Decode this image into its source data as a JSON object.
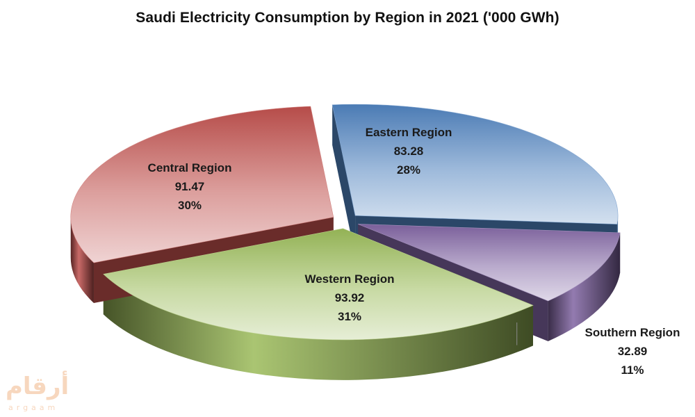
{
  "chart_data": {
    "type": "pie",
    "title": "Saudi Electricity Consumption by Region in 2021 ('000 GWh)",
    "legend": "none",
    "labels_on_slices": true,
    "slices": [
      {
        "name": "Eastern Region",
        "value": 83.28,
        "value_label": "83.28",
        "percent_label": "28%",
        "color": "#4f81bd"
      },
      {
        "name": "Southern Region",
        "value": 32.89,
        "value_label": "32.89",
        "percent_label": "11%",
        "color": "#8064a2"
      },
      {
        "name": "Western Region",
        "value": 93.92,
        "value_label": "93.92",
        "percent_label": "31%",
        "color": "#9bbb59"
      },
      {
        "name": "Central Region",
        "value": 91.47,
        "value_label": "91.47",
        "percent_label": "30%",
        "color": "#c0504d"
      }
    ]
  },
  "watermark": {
    "arabic": "أرقام",
    "latin": "argaam"
  }
}
